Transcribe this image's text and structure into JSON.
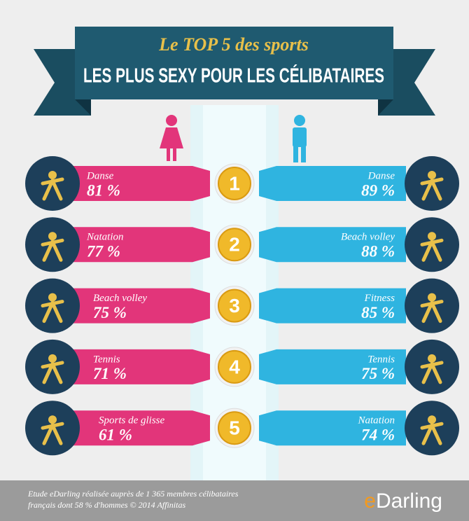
{
  "header": {
    "subtitle": "Le TOP 5 des sports",
    "title": "LES PLUS SEXY POUR LES CÉLIBATAIRES"
  },
  "rows": [
    {
      "rank": "1",
      "women": {
        "sport": "Danse",
        "value": "81 %"
      },
      "men": {
        "sport": "Danse",
        "value": "89 %"
      }
    },
    {
      "rank": "2",
      "women": {
        "sport": "Natation",
        "value": "77 %"
      },
      "men": {
        "sport": "Beach volley",
        "value": "88 %"
      }
    },
    {
      "rank": "3",
      "women": {
        "sport": "Beach volley",
        "value": "75 %"
      },
      "men": {
        "sport": "Fitness",
        "value": "85 %"
      }
    },
    {
      "rank": "4",
      "women": {
        "sport": "Tennis",
        "value": "71 %"
      },
      "men": {
        "sport": "Tennis",
        "value": "75 %"
      }
    },
    {
      "rank": "5",
      "women": {
        "sport": "Sports de glisse",
        "value": "61 %"
      },
      "men": {
        "sport": "Natation",
        "value": "74 %"
      }
    }
  ],
  "footer": {
    "note": [
      "Etude eDarling réalisée auprès de 1 365 membres célibataires",
      "français dont 58 % d'hommes © 2014 Affinitas"
    ],
    "logo": [
      "e",
      "Darling"
    ]
  }
}
